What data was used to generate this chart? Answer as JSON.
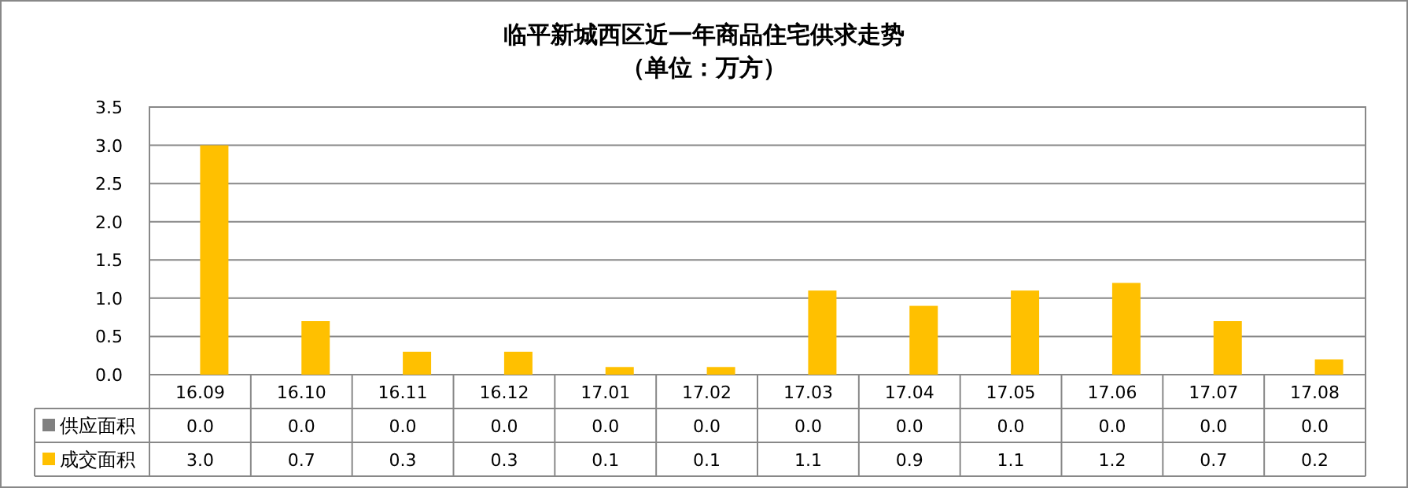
{
  "chart_data": {
    "type": "bar",
    "title": "临平新城西区近一年商品住宅供求走势",
    "subtitle": "（单位：万方）",
    "categories": [
      "16.09",
      "16.10",
      "16.11",
      "16.12",
      "17.01",
      "17.02",
      "17.03",
      "17.04",
      "17.05",
      "17.06",
      "17.07",
      "17.08"
    ],
    "series": [
      {
        "name": "供应面积",
        "color": "#808080",
        "values": [
          0.0,
          0.0,
          0.0,
          0.0,
          0.0,
          0.0,
          0.0,
          0.0,
          0.0,
          0.0,
          0.0,
          0.0
        ],
        "value_labels": [
          "0.0",
          "0.0",
          "0.0",
          "0.0",
          "0.0",
          "0.0",
          "0.0",
          "0.0",
          "0.0",
          "0.0",
          "0.0",
          "0.0"
        ]
      },
      {
        "name": "成交面积",
        "color": "#ffc000",
        "values": [
          3.0,
          0.7,
          0.3,
          0.3,
          0.1,
          0.1,
          1.1,
          0.9,
          1.1,
          1.2,
          0.7,
          0.2
        ],
        "value_labels": [
          "3.0",
          "0.7",
          "0.3",
          "0.3",
          "0.1",
          "0.1",
          "1.1",
          "0.9",
          "1.1",
          "1.2",
          "0.7",
          "0.2"
        ]
      }
    ],
    "ylim": [
      0,
      3.5
    ],
    "yticks": [
      {
        "value": 0,
        "label": "0.0"
      },
      {
        "value": 0.5,
        "label": "0.5"
      },
      {
        "value": 1,
        "label": "1.0"
      },
      {
        "value": 1.5,
        "label": "1.5"
      },
      {
        "value": 2,
        "label": "2.0"
      },
      {
        "value": 2.5,
        "label": "2.5"
      },
      {
        "value": 3,
        "label": "3.0"
      },
      {
        "value": 3.5,
        "label": "3.5"
      }
    ],
    "grid": "y",
    "legend": "bottom"
  }
}
